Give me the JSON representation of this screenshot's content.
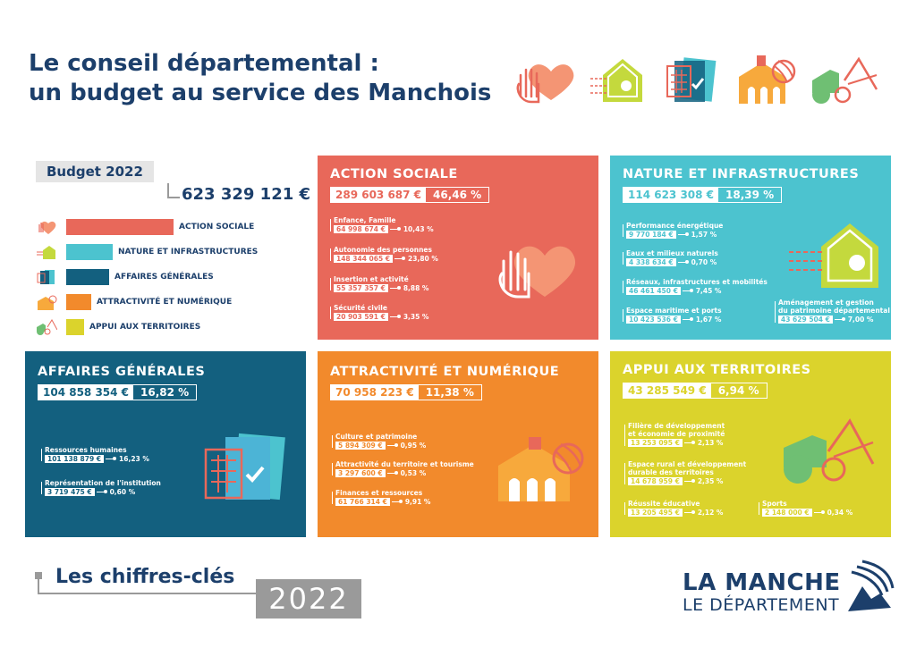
{
  "title": {
    "line1": "Le conseil départemental :",
    "line2": "un budget au service des Manchois"
  },
  "top_icons": [
    "hand-heart-icon",
    "house-leaf-icon",
    "calculator-check-icon",
    "school-ball-icon",
    "tractor-mountain-icon"
  ],
  "budget": {
    "label": "Budget 2022",
    "total": "623 329 121 €",
    "legend": [
      {
        "label": "ACTION SOCIALE",
        "color": "#e8685a",
        "share": 46.46,
        "icon": "hand-heart-icon"
      },
      {
        "label": "NATURE ET INFRASTRUCTURES",
        "color": "#4cc3cf",
        "share": 18.39,
        "icon": "house-leaf-icon"
      },
      {
        "label": "AFFAIRES GÉNÉRALES",
        "color": "#13607f",
        "share": 16.82,
        "icon": "calculator-check-icon"
      },
      {
        "label": "ATTRACTIVITÉ ET NUMÉRIQUE",
        "color": "#f28a2c",
        "share": 11.38,
        "icon": "school-ball-icon"
      },
      {
        "label": "APPUI AUX TERRITOIRES",
        "color": "#dbd32c",
        "share": 6.94,
        "icon": "tractor-mountain-icon"
      }
    ]
  },
  "cards": {
    "action_sociale": {
      "title": "ACTION SOCIALE",
      "amount": "289 603 687 €",
      "percent": "46,46 %",
      "color": "#e8685a",
      "items": [
        {
          "label": "Enfance, Famille",
          "value": "64 998 674 €",
          "pct": "10,43 %"
        },
        {
          "label": "Autonomie des personnes",
          "value": "148 344 065 €",
          "pct": "23,80 %"
        },
        {
          "label": "Insertion et activité",
          "value": "55 357 357 €",
          "pct": "8,88 %"
        },
        {
          "label": "Sécurité civile",
          "value": "20 903 591 €",
          "pct": "3,35 %"
        }
      ]
    },
    "nature": {
      "title": "NATURE ET INFRASTRUCTURES",
      "amount": "114 623 308 €",
      "percent": "18,39 %",
      "color": "#4cc3cf",
      "items": [
        {
          "label": "Performance énergétique",
          "value": "9 770 184 €",
          "pct": "1,57 %"
        },
        {
          "label": "Eaux et milieux naturels",
          "value": "4 338 634 €",
          "pct": "0,70 %"
        },
        {
          "label": "Réseaux, infrastructures et mobilités",
          "value": "46 461 450 €",
          "pct": "7,45 %"
        },
        {
          "label": "Espace maritime et ports",
          "value": "10 423 536 €",
          "pct": "1,67 %"
        },
        {
          "label": "Aménagement et gestion",
          "label2": "du patrimoine départemental",
          "value": "43 629 504 €",
          "pct": "7,00 %"
        }
      ]
    },
    "affaires": {
      "title": "AFFAIRES GÉNÉRALES",
      "amount": "104 858 354 €",
      "percent": "16,82 %",
      "color": "#13607f",
      "items": [
        {
          "label": "Ressources humaines",
          "value": "101 138 879 €",
          "pct": "16,23 %"
        },
        {
          "label": "Représentation de l'institution",
          "value": "3 719 475 €",
          "pct": "0,60 %"
        }
      ]
    },
    "attractivite": {
      "title": "ATTRACTIVITÉ ET NUMÉRIQUE",
      "amount": "70 958 223 €",
      "percent": "11,38 %",
      "color": "#f28a2c",
      "items": [
        {
          "label": "Culture et patrimoine",
          "value": "5 894 309 €",
          "pct": "0,95 %"
        },
        {
          "label": "Attractivité du territoire et tourisme",
          "value": "3 297 600 €",
          "pct": "0,53 %"
        },
        {
          "label": "Finances et ressources",
          "value": "61 766 314 €",
          "pct": "9,91 %"
        }
      ]
    },
    "appui": {
      "title": "APPUI AUX TERRITOIRES",
      "amount": "43 285 549 €",
      "percent": "6,94 %",
      "color": "#dbd32c",
      "items": [
        {
          "label": "Filière de développement",
          "label2": "et économie de proximité",
          "value": "13 253 095 €",
          "pct": "2,13 %"
        },
        {
          "label": "Espace rural et développement",
          "label2": "durable des territoires",
          "value": "14 678 959 €",
          "pct": "2,35 %"
        },
        {
          "label": "Réussite éducative",
          "value": "13 205 495 €",
          "pct": "2,12 %"
        },
        {
          "label": "Sports",
          "value": "2 148 000 €",
          "pct": "0,34 %"
        }
      ]
    }
  },
  "footer": {
    "title": "Les chiffres-clés",
    "year": "2022"
  },
  "logo": {
    "line1": "LA MANCHE",
    "line2": "LE DÉPARTEMENT"
  }
}
